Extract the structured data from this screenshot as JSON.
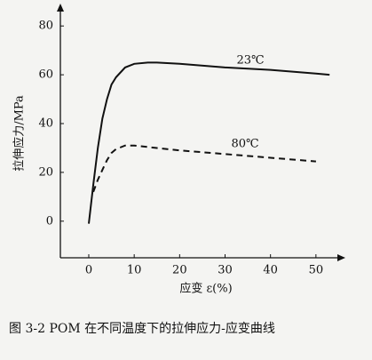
{
  "chart_data": {
    "type": "line",
    "x_label": "应变 ε(%)",
    "y_label": "拉伸应力/MPa",
    "caption": "图 3-2   POM 在不同温度下的拉伸应力-应变曲线",
    "xlim": [
      -6.25,
      55.5
    ],
    "ylim": [
      -15,
      87
    ],
    "xticks": [
      0,
      10,
      20,
      30,
      40,
      50
    ],
    "yticks": [
      0,
      20,
      40,
      60,
      80
    ],
    "series": [
      {
        "name": "23℃",
        "color": "#111111",
        "dash": "solid",
        "x": [
          0,
          1,
          2,
          3,
          4,
          5,
          6,
          8,
          10,
          13,
          15,
          20,
          30,
          40,
          50,
          53
        ],
        "values": [
          -1,
          15,
          30,
          42,
          50,
          56,
          59,
          63,
          64.5,
          65,
          65,
          64.5,
          63,
          62,
          60.5,
          60
        ]
      },
      {
        "name": "80℃",
        "color": "#111111",
        "dash": "dashed",
        "x": [
          1,
          2,
          3,
          4,
          5,
          6,
          8,
          10,
          15,
          20,
          30,
          40,
          50
        ],
        "values": [
          12,
          17,
          21,
          25,
          28,
          29.5,
          31,
          31,
          30,
          29,
          27.5,
          26,
          24.5
        ]
      }
    ]
  }
}
